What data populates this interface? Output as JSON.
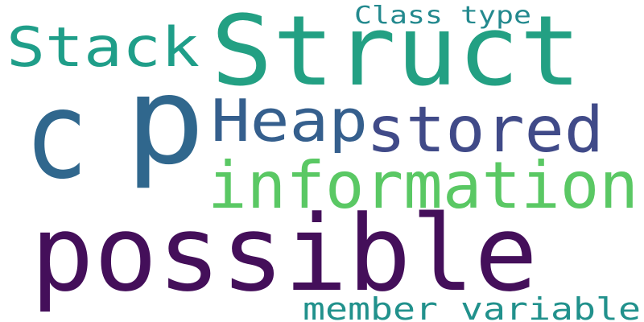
{
  "words": [
    {
      "key": "possible",
      "text": "possible",
      "color": "#440f5a"
    },
    {
      "key": "p",
      "text": "p",
      "color": "#30678d"
    },
    {
      "key": "struct",
      "text": "Struct",
      "color": "#23a083"
    },
    {
      "key": "c",
      "text": "c",
      "color": "#30678d"
    },
    {
      "key": "information",
      "text": "information",
      "color": "#5ac864"
    },
    {
      "key": "stored",
      "text": "stored",
      "color": "#404a88"
    },
    {
      "key": "heap",
      "text": "Heap",
      "color": "#355f8d"
    },
    {
      "key": "stack",
      "text": "Stack",
      "color": "#1f9e89"
    },
    {
      "key": "member_variable",
      "text": "member variable",
      "color": "#21918c"
    },
    {
      "key": "class_type",
      "text": "Class type",
      "color": "#23898e"
    }
  ]
}
